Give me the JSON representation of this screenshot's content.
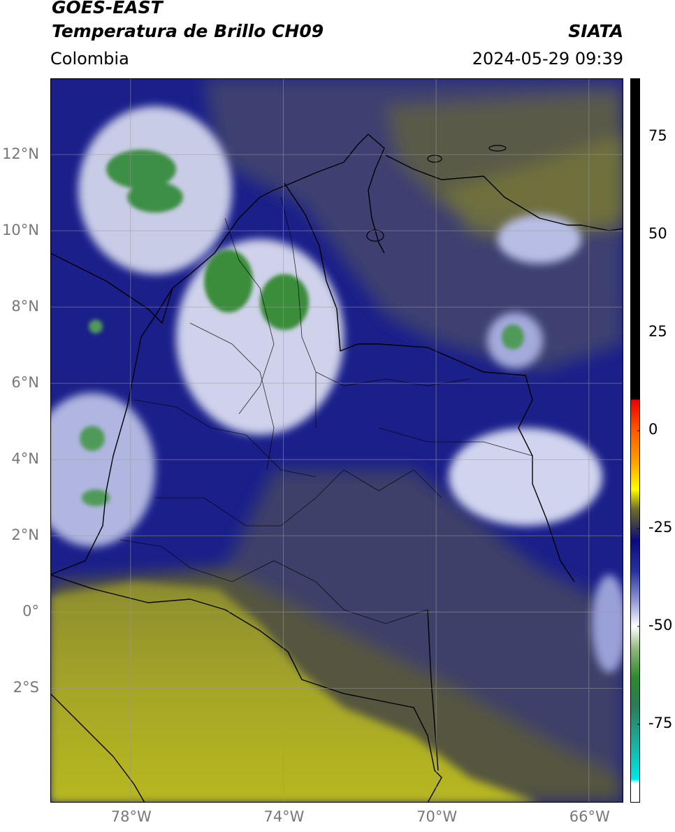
{
  "header": {
    "satellite": "GOES-EAST",
    "product": "Temperatura de Brillo CH09",
    "region": "Colombia",
    "agency": "SIATA",
    "datetime": "2024-05-29 09:39"
  },
  "axes": {
    "lat_labels": [
      {
        "text": "12°N",
        "value": 12
      },
      {
        "text": "10°N",
        "value": 10
      },
      {
        "text": "8°N",
        "value": 8
      },
      {
        "text": "6°N",
        "value": 6
      },
      {
        "text": "4°N",
        "value": 4
      },
      {
        "text": "2°N",
        "value": 2
      },
      {
        "text": "0°",
        "value": 0
      },
      {
        "text": "2°S",
        "value": -2
      }
    ],
    "lon_labels": [
      {
        "text": "78°W",
        "value": -78
      },
      {
        "text": "74°W",
        "value": -74
      },
      {
        "text": "70°W",
        "value": -70
      },
      {
        "text": "66°W",
        "value": -66
      }
    ],
    "lon_range": [
      -80.1,
      -65.1
    ],
    "lat_range": [
      -5.0,
      14.0
    ]
  },
  "colorbar": {
    "range": [
      -95,
      90
    ],
    "ticks": [
      {
        "text": "75",
        "value": 75
      },
      {
        "text": "50",
        "value": 50
      },
      {
        "text": "25",
        "value": 25
      },
      {
        "text": "0",
        "value": 0
      },
      {
        "text": "-25",
        "value": -25
      },
      {
        "text": "-50",
        "value": -50
      },
      {
        "text": "-75",
        "value": -75
      }
    ],
    "stops": [
      {
        "value": 90,
        "color": "#000000"
      },
      {
        "value": 8,
        "color": "#000000"
      },
      {
        "value": 7.9,
        "color": "#e80000"
      },
      {
        "value": 0,
        "color": "#ff5a00"
      },
      {
        "value": -8,
        "color": "#ffa000"
      },
      {
        "value": -15,
        "color": "#ffff00"
      },
      {
        "value": -20,
        "color": "#6e6e28"
      },
      {
        "value": -24,
        "color": "#3c3c4a"
      },
      {
        "value": -28,
        "color": "#0a0a82"
      },
      {
        "value": -36,
        "color": "#2832a0"
      },
      {
        "value": -44,
        "color": "#9aa0d8"
      },
      {
        "value": -50,
        "color": "#ffffff"
      },
      {
        "value": -56,
        "color": "#8cb478"
      },
      {
        "value": -63,
        "color": "#2d8a2d"
      },
      {
        "value": -70,
        "color": "#2b7a55"
      },
      {
        "value": -80,
        "color": "#1ab0a0"
      },
      {
        "value": -89,
        "color": "#00e6e6"
      },
      {
        "value": -90,
        "color": "#ffffff"
      },
      {
        "value": -95,
        "color": "#ffffff"
      }
    ]
  }
}
